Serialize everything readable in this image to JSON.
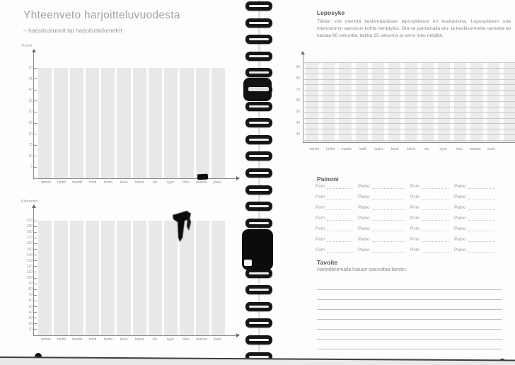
{
  "months": [
    "tammi",
    "helmi",
    "maalis",
    "huhti",
    "touko",
    "kesä",
    "heinä",
    "elo",
    "syys",
    "loka",
    "marras",
    "joulu"
  ],
  "left_page": {
    "title": "Yhteenveto harjoitteluvuodesta",
    "subtitle": "– harjoitustunnit tai harjoituskilometrit",
    "hours_chart": {
      "ylabel": "Tunnit",
      "ticks": [
        5,
        10,
        15,
        20,
        25,
        30,
        35,
        40,
        45,
        50
      ]
    },
    "km_chart": {
      "ylabel": "Kilometrit",
      "ticks": [
        10,
        20,
        30,
        40,
        50,
        60,
        70,
        80,
        90,
        100,
        110,
        120,
        130,
        140,
        150,
        160,
        170,
        180,
        190,
        200
      ]
    }
  },
  "right_page": {
    "resting_heart_rate": {
      "heading": "Leposyke",
      "body": "Tähän voit merkitä keskimääräisen leposykkeesi eri kuukausina. Leposykkeen otat mieluummin aamuisin kohta herättyäsi. Ota se painamalla etu- ja keskisormella rannetta tai kaulaa 60 sekuntia, taikka 15 sekuntia ja kerro luku neljällä.",
      "ytick_labels": [
        90,
        80,
        70,
        60,
        50,
        40,
        30
      ]
    },
    "weight_log": {
      "heading": "Painoni",
      "date_label": "Pvm",
      "weight_label": "Paino",
      "rows": 7,
      "pairs_per_row": 2
    },
    "goal": {
      "heading": "Tavoite",
      "prompt": "Harjoittelemalla haluan saavuttaa tämän:",
      "ruled_lines": 7
    }
  },
  "chart_data": [
    {
      "type": "bar",
      "title": "Tunnit",
      "categories": [
        "tammi",
        "helmi",
        "maalis",
        "huhti",
        "touko",
        "kesä",
        "heinä",
        "elo",
        "syys",
        "loka",
        "marras",
        "joulu"
      ],
      "values": [
        50,
        50,
        50,
        50,
        50,
        50,
        50,
        50,
        50,
        50,
        50,
        50
      ],
      "xlabel": "",
      "ylabel": "Tunnit",
      "ylim": [
        0,
        50
      ],
      "note": "blank log template – uniform placeholder columns, no user data"
    },
    {
      "type": "bar",
      "title": "Kilometrit",
      "categories": [
        "tammi",
        "helmi",
        "maalis",
        "huhti",
        "touko",
        "kesä",
        "heinä",
        "elo",
        "syys",
        "loka",
        "marras",
        "joulu"
      ],
      "values": [
        200,
        200,
        200,
        200,
        200,
        200,
        200,
        200,
        200,
        200,
        200,
        200
      ],
      "xlabel": "",
      "ylabel": "Kilometrit",
      "ylim": [
        0,
        200
      ],
      "note": "blank log template – uniform placeholder columns, no user data"
    },
    {
      "type": "bar",
      "title": "Leposyke",
      "categories": [
        "tammi",
        "helmi",
        "maalis",
        "huhti",
        "touko",
        "kesä",
        "heinä",
        "elo",
        "syys",
        "loka",
        "marras",
        "joulu"
      ],
      "values": [
        null,
        null,
        null,
        null,
        null,
        null,
        null,
        null,
        null,
        null,
        null,
        null
      ],
      "xlabel": "",
      "ylabel": "",
      "ylim": [
        25,
        95
      ],
      "grid": true,
      "ytick_labels": [
        90,
        80,
        70,
        60,
        50,
        40,
        30
      ],
      "note": "blank heart-rate grid with horizontal gridlines every 5 bpm"
    }
  ]
}
